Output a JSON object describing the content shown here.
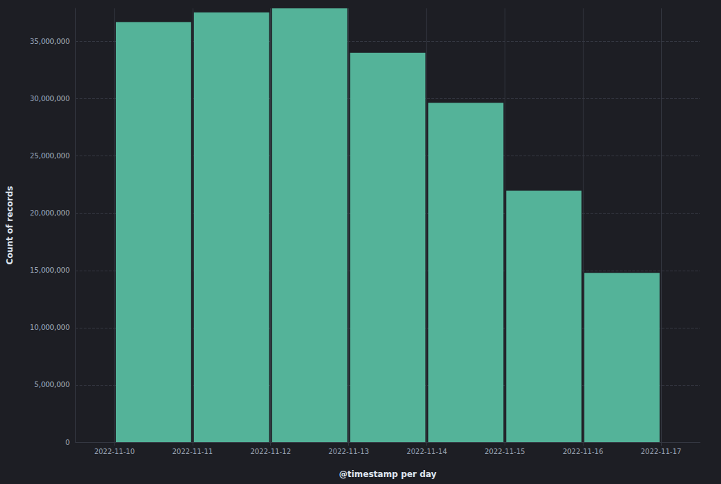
{
  "chart_data": {
    "type": "histogram",
    "x_label": "@timestamp per day",
    "y_label": "Count of records",
    "bins": [
      "2022-11-10",
      "2022-11-11",
      "2022-11-12",
      "2022-11-13",
      "2022-11-14",
      "2022-11-15",
      "2022-11-16",
      "2022-11-17"
    ],
    "values": [
      36700000,
      37550000,
      37900000,
      34020000,
      29640000,
      21970000,
      14790000
    ],
    "color": "#54b399",
    "ylim": [
      0,
      37900000
    ],
    "yticks": [
      0,
      {
        "value": 5000000,
        "label": "5,000,000"
      },
      {
        "value": 10000000,
        "label": "10,000,000"
      },
      {
        "value": 15000000,
        "label": "15,000,000"
      },
      {
        "value": 20000000,
        "label": "20,000,000"
      },
      {
        "value": 25000000,
        "label": "25,000,000"
      },
      {
        "value": 30000000,
        "label": "30,000,000"
      },
      {
        "value": 35000000,
        "label": "35,000,000"
      }
    ],
    "grid": true
  }
}
